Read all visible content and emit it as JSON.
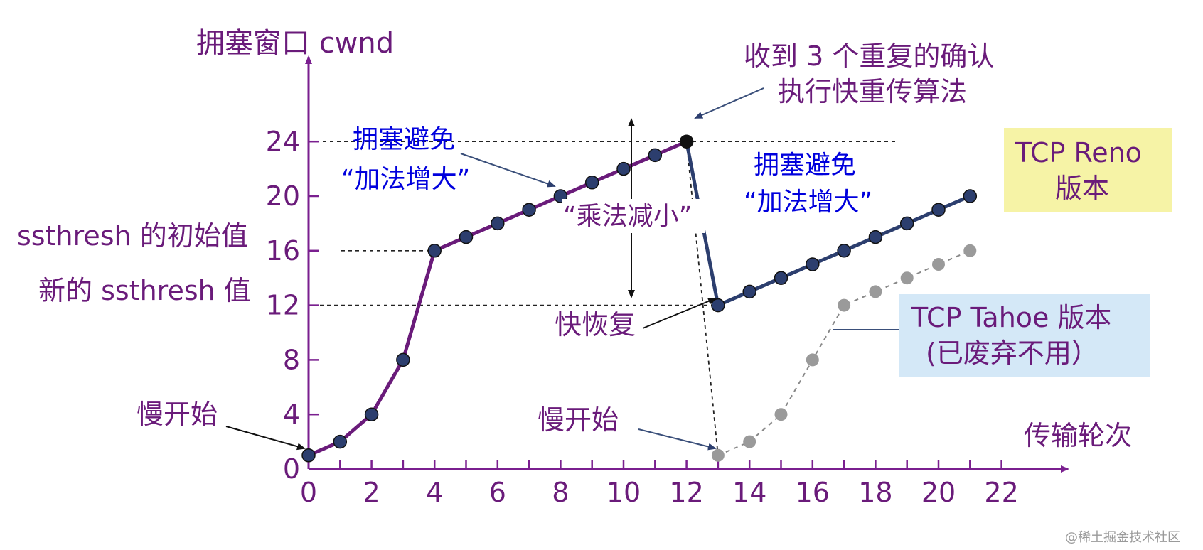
{
  "chart_data": {
    "type": "line",
    "ylabel": "拥塞窗口 cwnd",
    "xlabel": "传输轮次",
    "xlim": [
      0,
      22
    ],
    "ylim": [
      0,
      24
    ],
    "x_ticks": [
      0,
      2,
      4,
      6,
      8,
      10,
      12,
      14,
      16,
      18,
      20,
      22
    ],
    "y_ticks": [
      0,
      4,
      8,
      12,
      16,
      20,
      24
    ],
    "grid": false,
    "series": [
      {
        "name": "TCP Reno 版本",
        "color": "#6a1b7a",
        "points": [
          [
            0,
            1
          ],
          [
            1,
            2
          ],
          [
            2,
            4
          ],
          [
            3,
            8
          ],
          [
            4,
            16
          ],
          [
            5,
            17
          ],
          [
            6,
            18
          ],
          [
            7,
            19
          ],
          [
            8,
            20
          ],
          [
            9,
            21
          ],
          [
            10,
            22
          ],
          [
            11,
            23
          ],
          [
            12,
            24
          ]
        ]
      },
      {
        "name": "TCP Reno 版本",
        "color": "#2c3e6e",
        "points": [
          [
            13,
            12
          ],
          [
            14,
            13
          ],
          [
            15,
            14
          ],
          [
            16,
            15
          ],
          [
            17,
            16
          ],
          [
            18,
            17
          ],
          [
            19,
            18
          ],
          [
            20,
            19
          ],
          [
            21,
            20
          ]
        ]
      },
      {
        "name": "TCP Tahoe 版本",
        "color": "#888888",
        "style": "dashed",
        "points": [
          [
            13,
            1
          ],
          [
            14,
            2
          ],
          [
            15,
            4
          ],
          [
            16,
            8
          ],
          [
            17,
            12
          ],
          [
            18,
            13
          ],
          [
            19,
            14
          ],
          [
            20,
            15
          ],
          [
            21,
            16
          ]
        ]
      }
    ],
    "reference_lines": [
      {
        "y": 24,
        "style": "dashed"
      },
      {
        "y": 16,
        "style": "dashed"
      },
      {
        "y": 12,
        "style": "dashed"
      }
    ],
    "annotations": {
      "ssthresh_initial": "ssthresh 的初始值",
      "ssthresh_new": "新的 ssthresh 值",
      "slow_start_1": "慢开始",
      "slow_start_2": "慢开始",
      "ca1_line1": "拥塞避免",
      "ca1_line2": "“加法增大”",
      "ca2_line1": "拥塞避免",
      "ca2_line2": "“加法增大”",
      "multiplicative_decrease": "“乘法减小”",
      "fast_recovery": "快恢复",
      "three_dup_line1": "收到 3 个重复的确认",
      "three_dup_line2": "执行快重传算法",
      "reno_box_line1": "TCP Reno",
      "reno_box_line2": "版本",
      "tahoe_box_line1": "TCP Tahoe 版本",
      "tahoe_box_line2": "(已废弃不用）"
    },
    "watermark": "@稀土掘金技术社区"
  },
  "colors": {
    "axis": "#7a1f8f",
    "label": "#6a1b7a",
    "blue_label": "#0000dd",
    "reno_box_bg": "#f6f3a6",
    "tahoe_box_bg": "#d4e8f7"
  }
}
